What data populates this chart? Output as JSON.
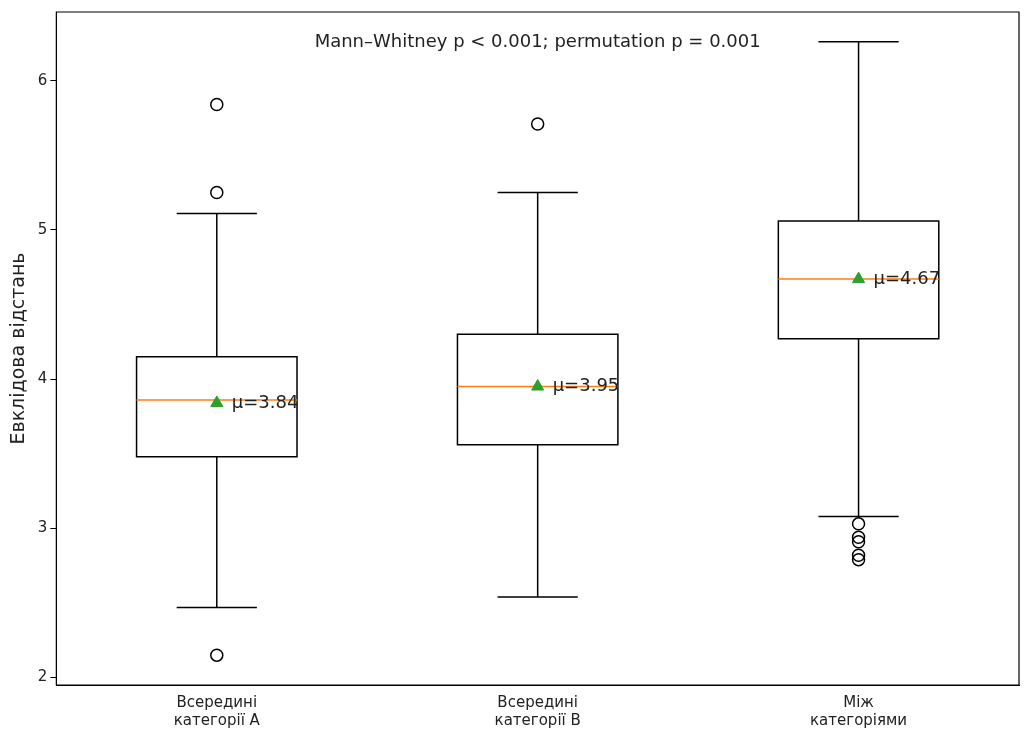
{
  "chart_data": {
    "type": "box",
    "ylabel": "Евклідова відстань",
    "categories": [
      "Всередині категорії A",
      "Всередині категорії B",
      "Між категоріями"
    ],
    "boxes": [
      {
        "low": 2.47,
        "q1": 3.48,
        "median": 3.86,
        "q3": 4.15,
        "high": 5.11,
        "mean": 3.84,
        "outliers": [
          5.84,
          5.25,
          2.15
        ]
      },
      {
        "low": 2.54,
        "q1": 3.56,
        "median": 3.95,
        "q3": 4.3,
        "high": 5.25,
        "mean": 3.95,
        "outliers": [
          5.71
        ]
      },
      {
        "low": 3.08,
        "q1": 4.27,
        "median": 4.67,
        "q3": 5.06,
        "high": 6.26,
        "mean": 4.67,
        "outliers": [
          3.03,
          2.94,
          2.91,
          2.82,
          2.79
        ]
      }
    ],
    "ylim": [
      1.95,
      6.46
    ],
    "yticks": [
      2,
      3,
      4,
      5,
      6
    ],
    "grid": false,
    "legend": false,
    "annotations": [
      "Mann–Whitney p < 0.001; permutation p = 0.001",
      {
        "text": "μ=3.84",
        "x": "Всередині категорії A",
        "y": 3.84
      },
      {
        "text": "μ=3.95",
        "x": "Всередині категорії B",
        "y": 3.95
      },
      {
        "text": "μ=4.67",
        "x": "Між категоріями",
        "y": 4.67
      }
    ]
  }
}
